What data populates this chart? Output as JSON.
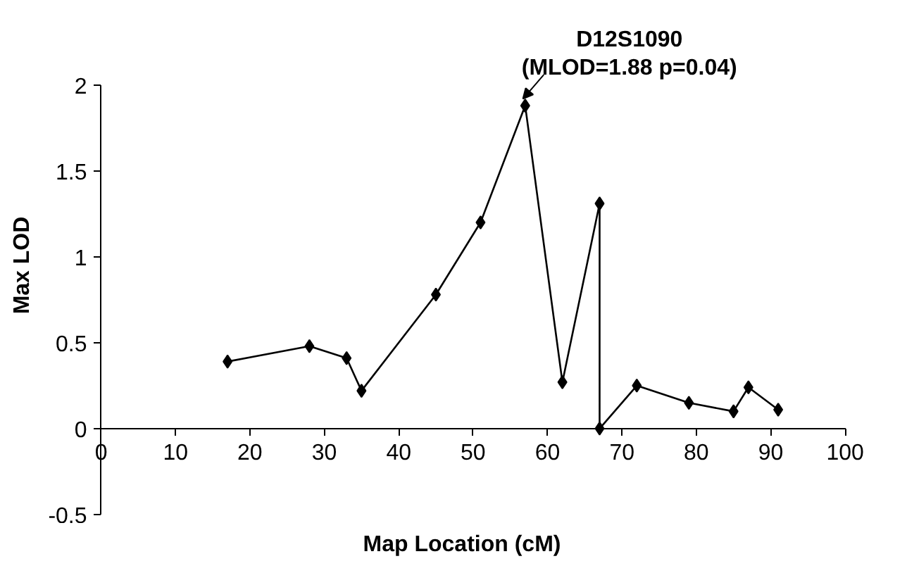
{
  "chart_data": {
    "type": "line",
    "xlabel": "Map Location (cM)",
    "ylabel": "Max LOD",
    "x": [
      17,
      28,
      33,
      35,
      45,
      51,
      57,
      62,
      67,
      67,
      72,
      79,
      85,
      87,
      91
    ],
    "series": [
      {
        "color": "#000000",
        "values": [
          0.39,
          0.48,
          0.41,
          0.22,
          0.78,
          1.2,
          1.88,
          0.27,
          1.31,
          0,
          0.25,
          0.15,
          0.1,
          0.24,
          0.11
        ]
      }
    ],
    "xlim": [
      0,
      100
    ],
    "ylim": [
      -0.5,
      2
    ],
    "xticks": [
      0,
      10,
      20,
      30,
      40,
      50,
      60,
      70,
      80,
      90,
      100
    ],
    "yticks": [
      -0.5,
      0,
      0.5,
      1,
      1.5,
      2
    ],
    "annotations": [
      {
        "text": "D12S1090\n(MLOD=1.88 p=0.04)",
        "x": 57,
        "y": 1.88
      }
    ],
    "marker": "diamond",
    "grid": false,
    "line_style": "solid"
  }
}
